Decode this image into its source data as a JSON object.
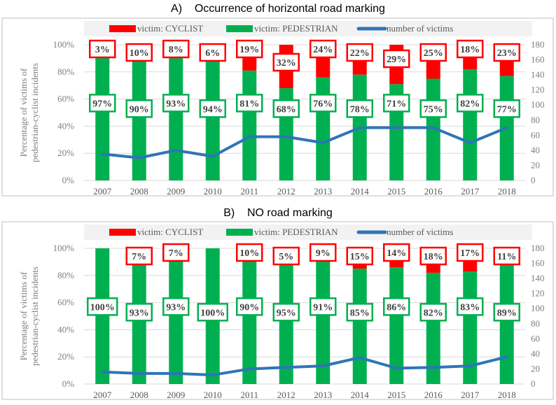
{
  "chart_data": [
    {
      "type": "bar",
      "title": "A)    Occurrence of horizontal road marking",
      "ylabel": "Percentage of victims of pedestrian-cyclist incidents",
      "categories": [
        "2007",
        "2008",
        "2009",
        "2010",
        "2011",
        "2012",
        "2013",
        "2014",
        "2015",
        "2016",
        "2017",
        "2018"
      ],
      "ylim": [
        0,
        100
      ],
      "y_ticks": [
        "0%",
        "20%",
        "40%",
        "60%",
        "80%",
        "100%"
      ],
      "y2lim": [
        0,
        180
      ],
      "y2_ticks": [
        "0",
        "20",
        "40",
        "60",
        "80",
        "100",
        "120",
        "140",
        "160",
        "180"
      ],
      "legend_position": "top",
      "series": [
        {
          "name": "victim: CYCLIST",
          "kind": "stacked-bar",
          "color": "#ff0000",
          "values": [
            3,
            10,
            8,
            6,
            19,
            32,
            24,
            22,
            29,
            25,
            18,
            23
          ],
          "labels": [
            "3%",
            "10%",
            "8%",
            "6%",
            "19%",
            "32%",
            "24%",
            "22%",
            "29%",
            "25%",
            "18%",
            "23%"
          ]
        },
        {
          "name": "victim: PEDESTRIAN",
          "kind": "stacked-bar",
          "color": "#00b050",
          "values": [
            97,
            90,
            93,
            94,
            81,
            68,
            76,
            78,
            71,
            75,
            82,
            77
          ],
          "labels": [
            "97%",
            "90%",
            "93%",
            "94%",
            "81%",
            "68%",
            "76%",
            "78%",
            "71%",
            "75%",
            "82%",
            "77%"
          ]
        },
        {
          "name": "number of victims",
          "kind": "line",
          "axis": "right",
          "color": "#2e75b6",
          "values": [
            35,
            30,
            40,
            32,
            58,
            58,
            50,
            70,
            70,
            70,
            50,
            70
          ]
        }
      ]
    },
    {
      "type": "bar",
      "title": "B)    NO road marking",
      "ylabel": "Percentage of victims of pedestrian-cyclist incidents",
      "categories": [
        "2007",
        "2008",
        "2009",
        "2010",
        "2011",
        "2012",
        "2013",
        "2014",
        "2015",
        "2016",
        "2017",
        "2018"
      ],
      "ylim": [
        0,
        100
      ],
      "y_ticks": [
        "0%",
        "20%",
        "40%",
        "60%",
        "80%",
        "100%"
      ],
      "y2lim": [
        0,
        180
      ],
      "y2_ticks": [
        "0",
        "20",
        "40",
        "60",
        "80",
        "100",
        "120",
        "140",
        "160",
        "180"
      ],
      "legend_position": "top",
      "series": [
        {
          "name": "victim: CYCLIST",
          "kind": "stacked-bar",
          "color": "#ff0000",
          "values": [
            0,
            7,
            7,
            0,
            10,
            5,
            9,
            15,
            14,
            18,
            17,
            11
          ],
          "labels": [
            "",
            "7%",
            "7%",
            "",
            "10%",
            "5%",
            "9%",
            "15%",
            "14%",
            "18%",
            "17%",
            "11%"
          ]
        },
        {
          "name": "victim: PEDESTRIAN",
          "kind": "stacked-bar",
          "color": "#00b050",
          "values": [
            100,
            93,
            93,
            100,
            90,
            95,
            91,
            85,
            86,
            82,
            83,
            89
          ],
          "labels": [
            "100%",
            "93%",
            "93%",
            "100%",
            "90%",
            "95%",
            "91%",
            "85%",
            "86%",
            "82%",
            "83%",
            "89%"
          ]
        },
        {
          "name": "number of victims",
          "kind": "line",
          "axis": "right",
          "color": "#2e75b6",
          "values": [
            16,
            14,
            14,
            12,
            20,
            22,
            24,
            35,
            21,
            22,
            24,
            36
          ]
        }
      ]
    }
  ]
}
